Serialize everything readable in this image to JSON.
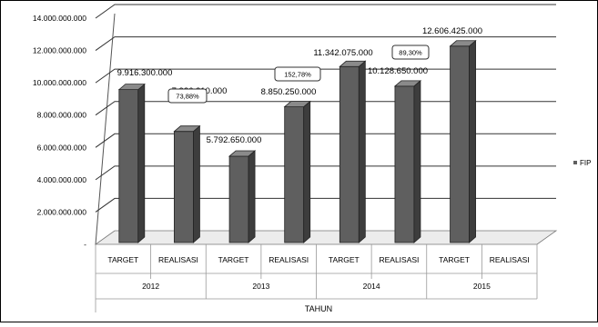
{
  "chart_data": {
    "type": "bar",
    "xlabel": "TAHUN",
    "ylabel": "",
    "ylim": [
      0,
      14000000
    ],
    "y_ticks": [
      "-",
      "2.000.000.000",
      "4.000.000.000",
      "6.000.000.000",
      "8.000.000.000",
      "10.000.000.000",
      "12.000.000.000",
      "14.000.000.000"
    ],
    "legend": {
      "label": "FIP",
      "position": "right"
    },
    "series": [
      {
        "name": "FIP",
        "values": [
          9916300,
          7326210,
          5792650,
          8850250,
          11342075,
          10128650,
          12606425,
          null
        ]
      }
    ],
    "categories": [
      "TARGET",
      "REALISASI",
      "TARGET",
      "REALISASI",
      "TARGET",
      "REALISASI",
      "TARGET",
      "REALISASI"
    ],
    "groups": [
      "2012",
      "2013",
      "2014",
      "2015"
    ],
    "data_labels": [
      "9.916.300.000",
      "7.326.210.000",
      "5.792.650.000",
      "8.850.250.000",
      "11.342.075.000",
      "10.128.650.000",
      "12.606.425.000",
      ""
    ],
    "annotations": [
      "73,88%",
      "152,78%",
      "89,30%"
    ],
    "grid": true,
    "colors": {
      "bar": "#5f5f5f",
      "bar_side": "#3d3d3d",
      "bar_top": "#8a8a8a",
      "grid": "#333333",
      "frame": "#000000"
    }
  }
}
